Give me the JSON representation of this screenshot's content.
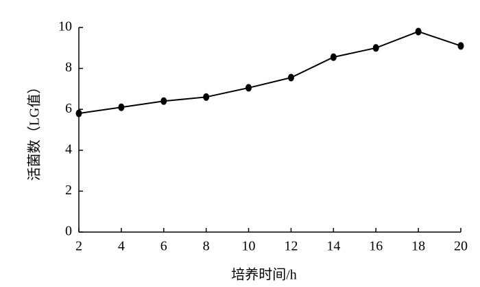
{
  "chart_data": {
    "type": "line",
    "x_label": "培养时间/h",
    "y_label": "活菌数（LG值）",
    "x": [
      2,
      4,
      6,
      8,
      10,
      12,
      14,
      16,
      18,
      20
    ],
    "series": [
      {
        "name": null,
        "color": "#000000",
        "values": [
          5.8,
          6.1,
          6.4,
          6.6,
          7.05,
          7.55,
          8.55,
          9.0,
          9.8,
          9.1
        ]
      }
    ],
    "xlim": [
      2,
      20
    ],
    "xticks": [
      2,
      4,
      6,
      8,
      10,
      12,
      14,
      16,
      18,
      20
    ],
    "ylim": [
      0,
      10
    ],
    "yticks": [
      0,
      2,
      4,
      6,
      8,
      10
    ],
    "grid": false
  }
}
